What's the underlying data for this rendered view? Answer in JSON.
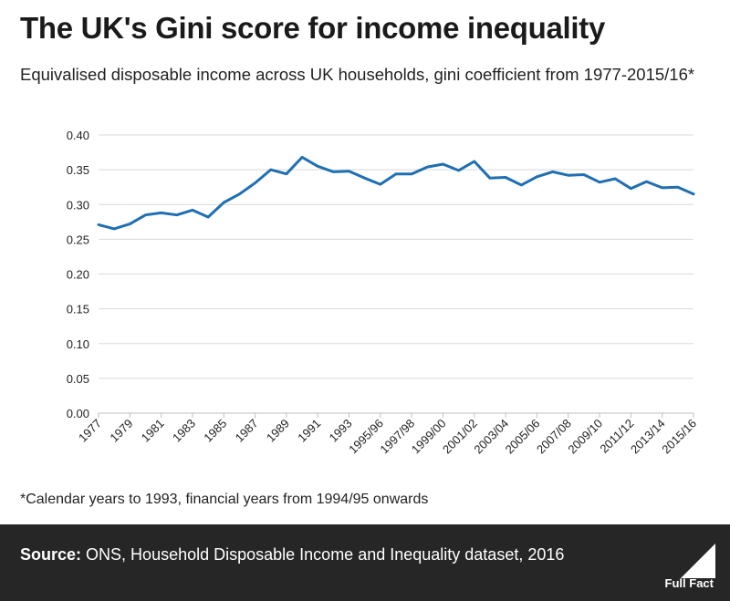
{
  "title": "The UK's Gini score for income inequality",
  "subtitle": "Equivalised disposable income across UK households, gini coefficient from 1977-2015/16*",
  "footnote": "*Calendar years to 1993, financial years from 1994/95 onwards",
  "source_label": "Source:",
  "source_text": "ONS, Household Disposable Income and Inequality dataset, 2016",
  "logo_text": "Full Fact",
  "colors": {
    "line": "#1f6fb2",
    "grid": "#d9d9d9",
    "footer_bg": "#262626"
  },
  "chart_data": {
    "type": "line",
    "title": "The UK's Gini score for income inequality",
    "xlabel": "",
    "ylabel": "",
    "ylim": [
      0,
      0.4
    ],
    "yticks": [
      "0.00",
      "0.05",
      "0.10",
      "0.15",
      "0.20",
      "0.25",
      "0.30",
      "0.35",
      "0.40"
    ],
    "categories": [
      "1977",
      "1978",
      "1979",
      "1980",
      "1981",
      "1982",
      "1983",
      "1984",
      "1985",
      "1986",
      "1987",
      "1988",
      "1989",
      "1990",
      "1991",
      "1992",
      "1993",
      "1994/95",
      "1995/96",
      "1996/97",
      "1997/98",
      "1998/99",
      "1999/00",
      "2000/01",
      "2001/02",
      "2002/03",
      "2003/04",
      "2004/05",
      "2005/06",
      "2006/07",
      "2007/08",
      "2008/09",
      "2009/10",
      "2010/11",
      "2011/12",
      "2012/13",
      "2013/14",
      "2014/15",
      "2015/16"
    ],
    "tick_labels": [
      "1977",
      "1979",
      "1981",
      "1983",
      "1985",
      "1987",
      "1989",
      "1991",
      "1993",
      "1995/96",
      "1997/98",
      "1999/00",
      "2001/02",
      "2003/04",
      "2005/06",
      "2007/08",
      "2009/10",
      "2011/12",
      "2013/14",
      "2015/16"
    ],
    "series": [
      {
        "name": "Gini coefficient",
        "values": [
          0.271,
          0.265,
          0.272,
          0.285,
          0.288,
          0.285,
          0.292,
          0.282,
          0.303,
          0.315,
          0.331,
          0.35,
          0.344,
          0.368,
          0.355,
          0.347,
          0.348,
          0.338,
          0.329,
          0.344,
          0.344,
          0.354,
          0.358,
          0.349,
          0.362,
          0.338,
          0.339,
          0.328,
          0.34,
          0.347,
          0.342,
          0.343,
          0.332,
          0.337,
          0.323,
          0.333,
          0.324,
          0.325,
          0.315
        ]
      }
    ],
    "grid": true
  }
}
